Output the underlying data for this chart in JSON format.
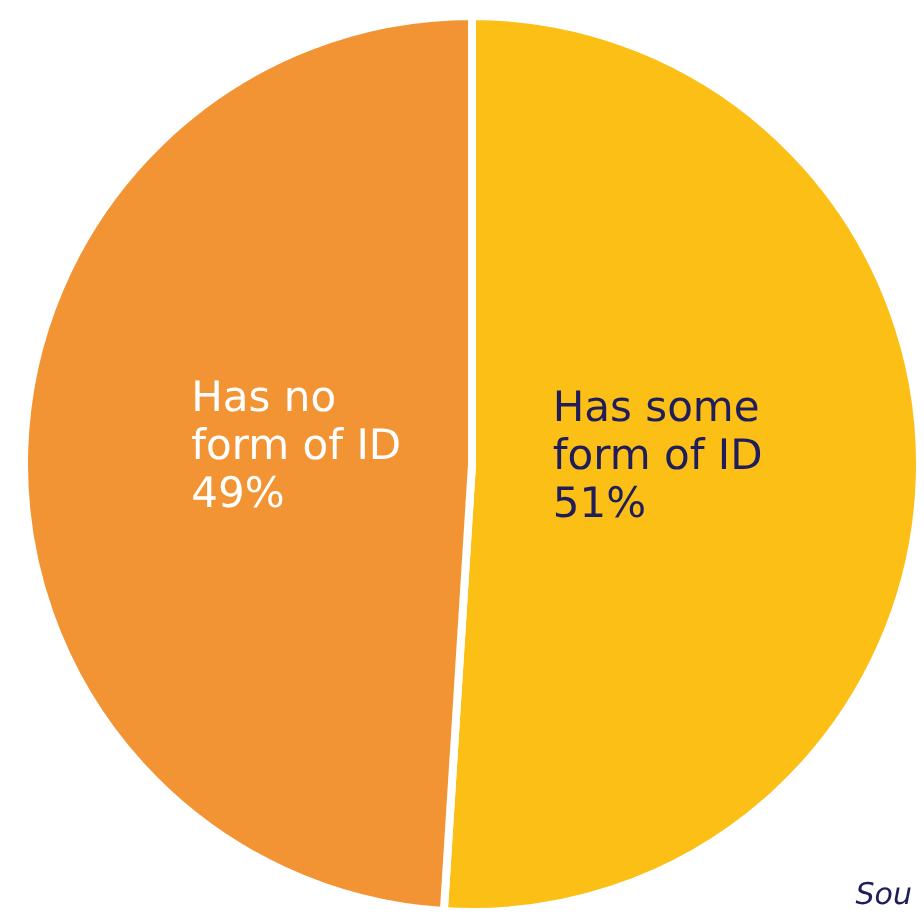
{
  "chart_data": {
    "type": "pie",
    "categories": [
      "Has some form of ID",
      "Has no form of ID"
    ],
    "values": [
      51,
      49
    ],
    "colors": [
      "#fbbf16",
      "#f39434"
    ],
    "value_labels": [
      "51%",
      "49%"
    ],
    "annotations": [
      "Sou"
    ]
  }
}
